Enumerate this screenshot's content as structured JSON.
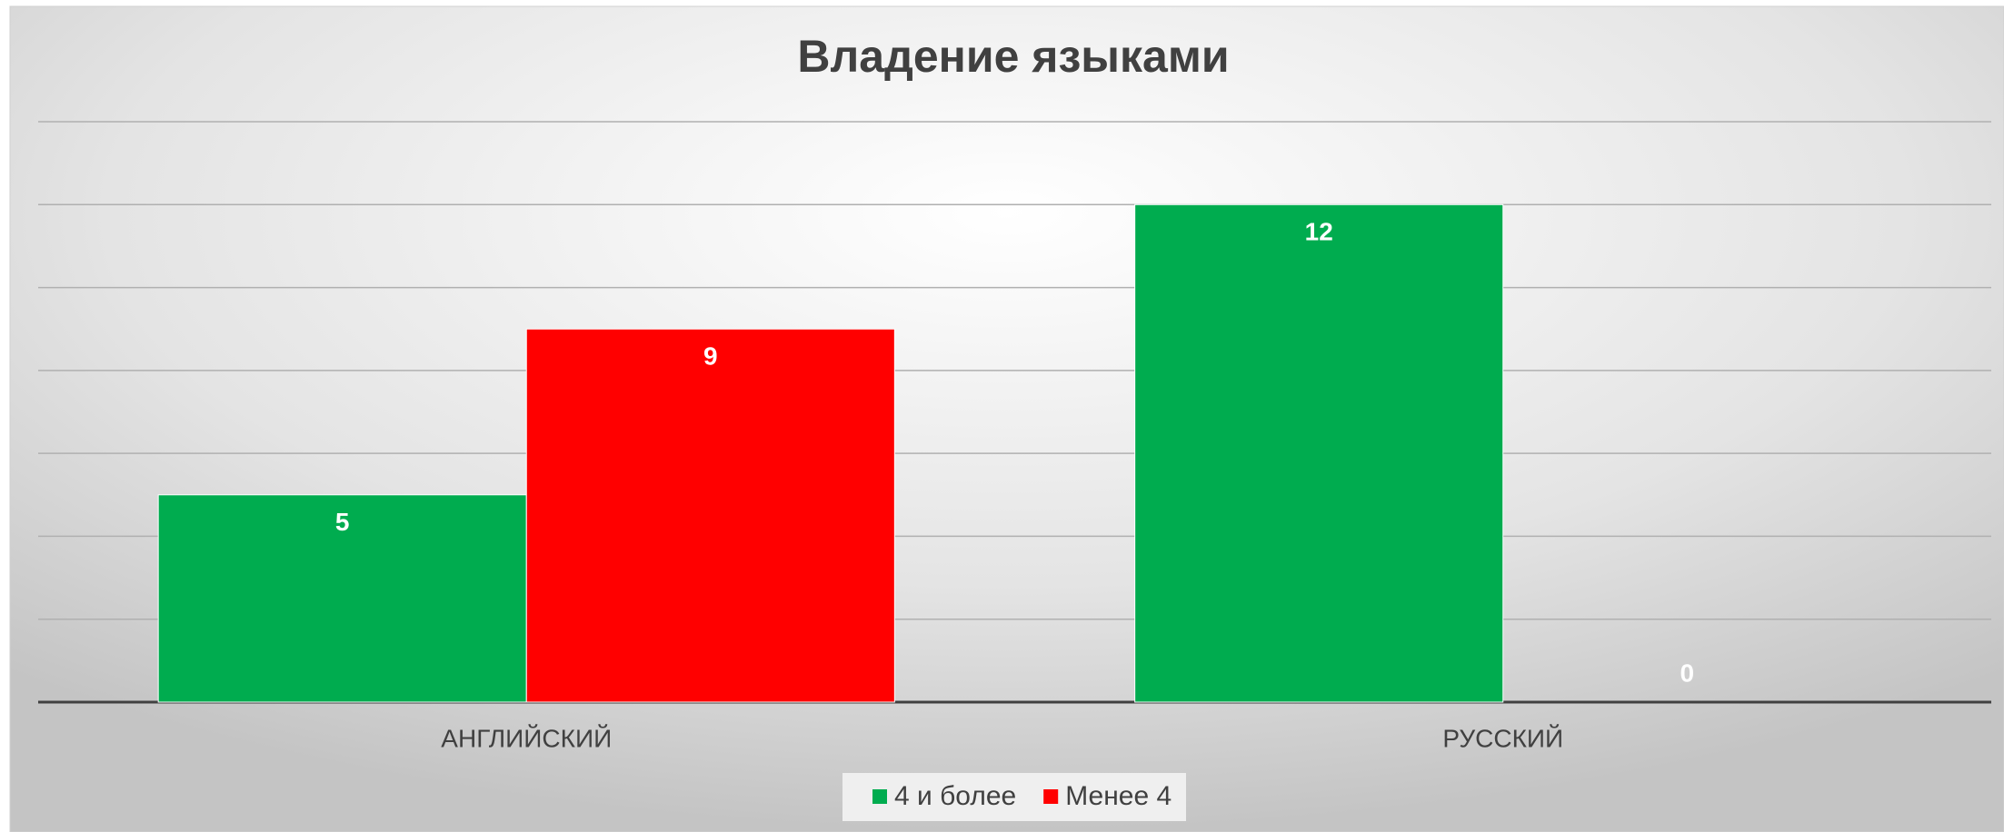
{
  "chart_data": {
    "type": "bar",
    "title": "Владение языками",
    "categories": [
      "АНГЛИЙСКИЙ",
      "РУССКИЙ"
    ],
    "series": [
      {
        "name": "4 и более",
        "color": "#00ac4f",
        "values": [
          5,
          12
        ]
      },
      {
        "name": "Менее 4",
        "color": "#ff0000",
        "values": [
          9,
          0
        ]
      }
    ],
    "ylim": [
      0,
      14
    ],
    "yticks": [
      0,
      2,
      4,
      6,
      8,
      10,
      12,
      14
    ],
    "grid": true,
    "legend": "bottom"
  }
}
